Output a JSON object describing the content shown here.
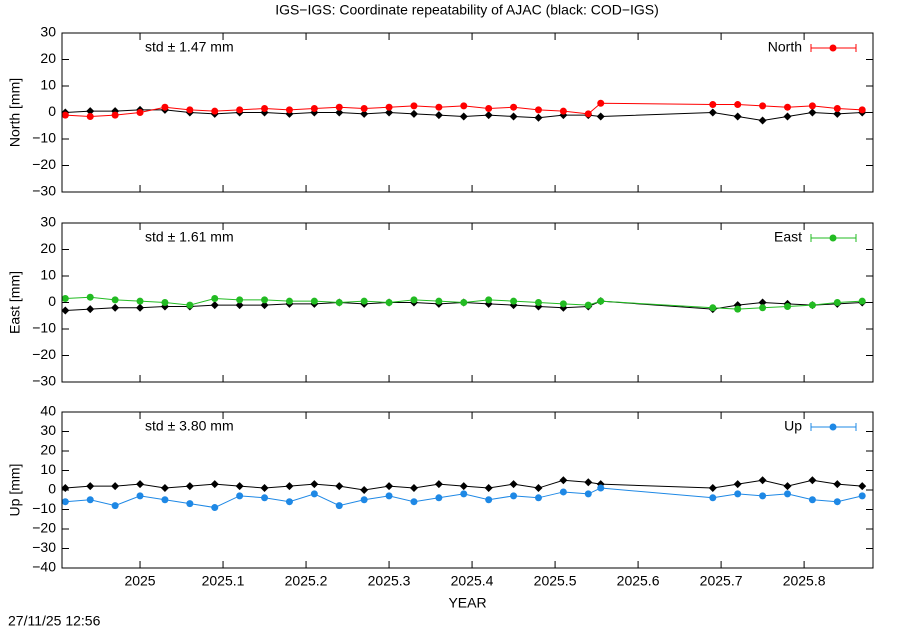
{
  "title": "IGS−IGS: Coordinate repeatability of AJAC (black: COD−IGS)",
  "timestamp": "27/11/25 12:56",
  "chart_data": [
    {
      "type": "line",
      "ylabel": "North [mm]",
      "annotation": "std ± 1.47 mm",
      "xlim": [
        2024.906,
        2025.883
      ],
      "ylim": [
        -30,
        30
      ],
      "yticks": [
        {
          "value": -30,
          "label": "−30"
        },
        {
          "value": -20,
          "label": "−20"
        },
        {
          "value": -10,
          "label": "−10"
        },
        0,
        10,
        20,
        30
      ],
      "x": [
        2024.91,
        2024.94,
        2024.97,
        2025.0,
        2025.03,
        2025.06,
        2025.09,
        2025.12,
        2025.15,
        2025.18,
        2025.21,
        2025.24,
        2025.27,
        2025.3,
        2025.33,
        2025.36,
        2025.39,
        2025.42,
        2025.45,
        2025.48,
        2025.51,
        2025.54,
        2025.555,
        2025.69,
        2025.72,
        2025.75,
        2025.78,
        2025.81,
        2025.84,
        2025.87
      ],
      "series": [
        {
          "color": "#000000",
          "values": [
            0,
            0.5,
            0.5,
            1,
            1,
            0,
            -0.5,
            0,
            0,
            -0.5,
            0,
            0,
            -0.5,
            0,
            -0.5,
            -1,
            -1.5,
            -1,
            -1.5,
            -2,
            -1,
            -1,
            -1.5,
            0,
            -1.5,
            -3,
            -1.5,
            0,
            -0.5,
            0
          ]
        },
        {
          "name": "North",
          "color": "#ff0000",
          "values": [
            -1,
            -1.5,
            -1,
            0,
            2,
            1,
            0.5,
            1,
            1.5,
            1,
            1.5,
            2,
            1.5,
            2,
            2.5,
            2,
            2.5,
            1.5,
            2,
            1,
            0.5,
            -0.5,
            3.5,
            3,
            3,
            2.5,
            2,
            2.5,
            1.5,
            1
          ]
        }
      ]
    },
    {
      "type": "line",
      "ylabel": "East [mm]",
      "annotation": "std ± 1.61 mm",
      "xlim": [
        2024.906,
        2025.883
      ],
      "ylim": [
        -30,
        30
      ],
      "yticks": [
        {
          "value": -30,
          "label": "−30"
        },
        {
          "value": -20,
          "label": "−20"
        },
        {
          "value": -10,
          "label": "−10"
        },
        0,
        10,
        20,
        30
      ],
      "x": [
        2024.91,
        2024.94,
        2024.97,
        2025.0,
        2025.03,
        2025.06,
        2025.09,
        2025.12,
        2025.15,
        2025.18,
        2025.21,
        2025.24,
        2025.27,
        2025.3,
        2025.33,
        2025.36,
        2025.39,
        2025.42,
        2025.45,
        2025.48,
        2025.51,
        2025.54,
        2025.555,
        2025.69,
        2025.72,
        2025.75,
        2025.78,
        2025.81,
        2025.84,
        2025.87
      ],
      "series": [
        {
          "color": "#000000",
          "values": [
            -3,
            -2.5,
            -2,
            -2,
            -1.5,
            -1.5,
            -1,
            -1,
            -1,
            -0.5,
            -0.5,
            0,
            -0.5,
            0,
            0,
            -0.5,
            0,
            -0.5,
            -1,
            -1.5,
            -2,
            -1.5,
            0.5,
            -2.5,
            -1,
            0,
            -0.5,
            -1,
            -0.5,
            0
          ]
        },
        {
          "name": "East",
          "color": "#22bb22",
          "values": [
            1.5,
            2,
            1,
            0.5,
            0,
            -1,
            1.5,
            1,
            1,
            0.5,
            0.5,
            0,
            0.5,
            0,
            1,
            0.5,
            0,
            1,
            0.5,
            0,
            -0.5,
            -1,
            0.5,
            -2,
            -2.5,
            -2,
            -1.5,
            -1,
            0,
            0.5
          ]
        }
      ]
    },
    {
      "type": "line",
      "ylabel": "Up [mm]",
      "annotation": "std ± 3.80 mm",
      "xlabel": "YEAR",
      "xlim": [
        2024.906,
        2025.883
      ],
      "xticks": [
        2025,
        2025.1,
        2025.2,
        2025.3,
        2025.4,
        2025.5,
        2025.6,
        2025.7,
        2025.8
      ],
      "ylim": [
        -40,
        40
      ],
      "yticks": [
        {
          "value": -40,
          "label": "−40"
        },
        {
          "value": -30,
          "label": "−30"
        },
        {
          "value": -20,
          "label": "−20"
        },
        {
          "value": -10,
          "label": "−10"
        },
        0,
        10,
        20,
        30,
        40
      ],
      "x": [
        2024.91,
        2024.94,
        2024.97,
        2025.0,
        2025.03,
        2025.06,
        2025.09,
        2025.12,
        2025.15,
        2025.18,
        2025.21,
        2025.24,
        2025.27,
        2025.3,
        2025.33,
        2025.36,
        2025.39,
        2025.42,
        2025.45,
        2025.48,
        2025.51,
        2025.54,
        2025.555,
        2025.69,
        2025.72,
        2025.75,
        2025.78,
        2025.81,
        2025.84,
        2025.87
      ],
      "series": [
        {
          "color": "#000000",
          "values": [
            1,
            2,
            2,
            3,
            1,
            2,
            3,
            2,
            1,
            2,
            3,
            2,
            0,
            2,
            1,
            3,
            2,
            1,
            3,
            1,
            5,
            4,
            3,
            1,
            3,
            5,
            2,
            5,
            3,
            2
          ]
        },
        {
          "name": "Up",
          "color": "#1e88e5",
          "values": [
            -6,
            -5,
            -8,
            -3,
            -5,
            -7,
            -9,
            -3,
            -4,
            -6,
            -2,
            -8,
            -5,
            -3,
            -6,
            -4,
            -2,
            -5,
            -3,
            -4,
            -1,
            -2,
            1,
            -4,
            -2,
            -3,
            -2,
            -5,
            -6,
            -3
          ]
        }
      ]
    }
  ]
}
